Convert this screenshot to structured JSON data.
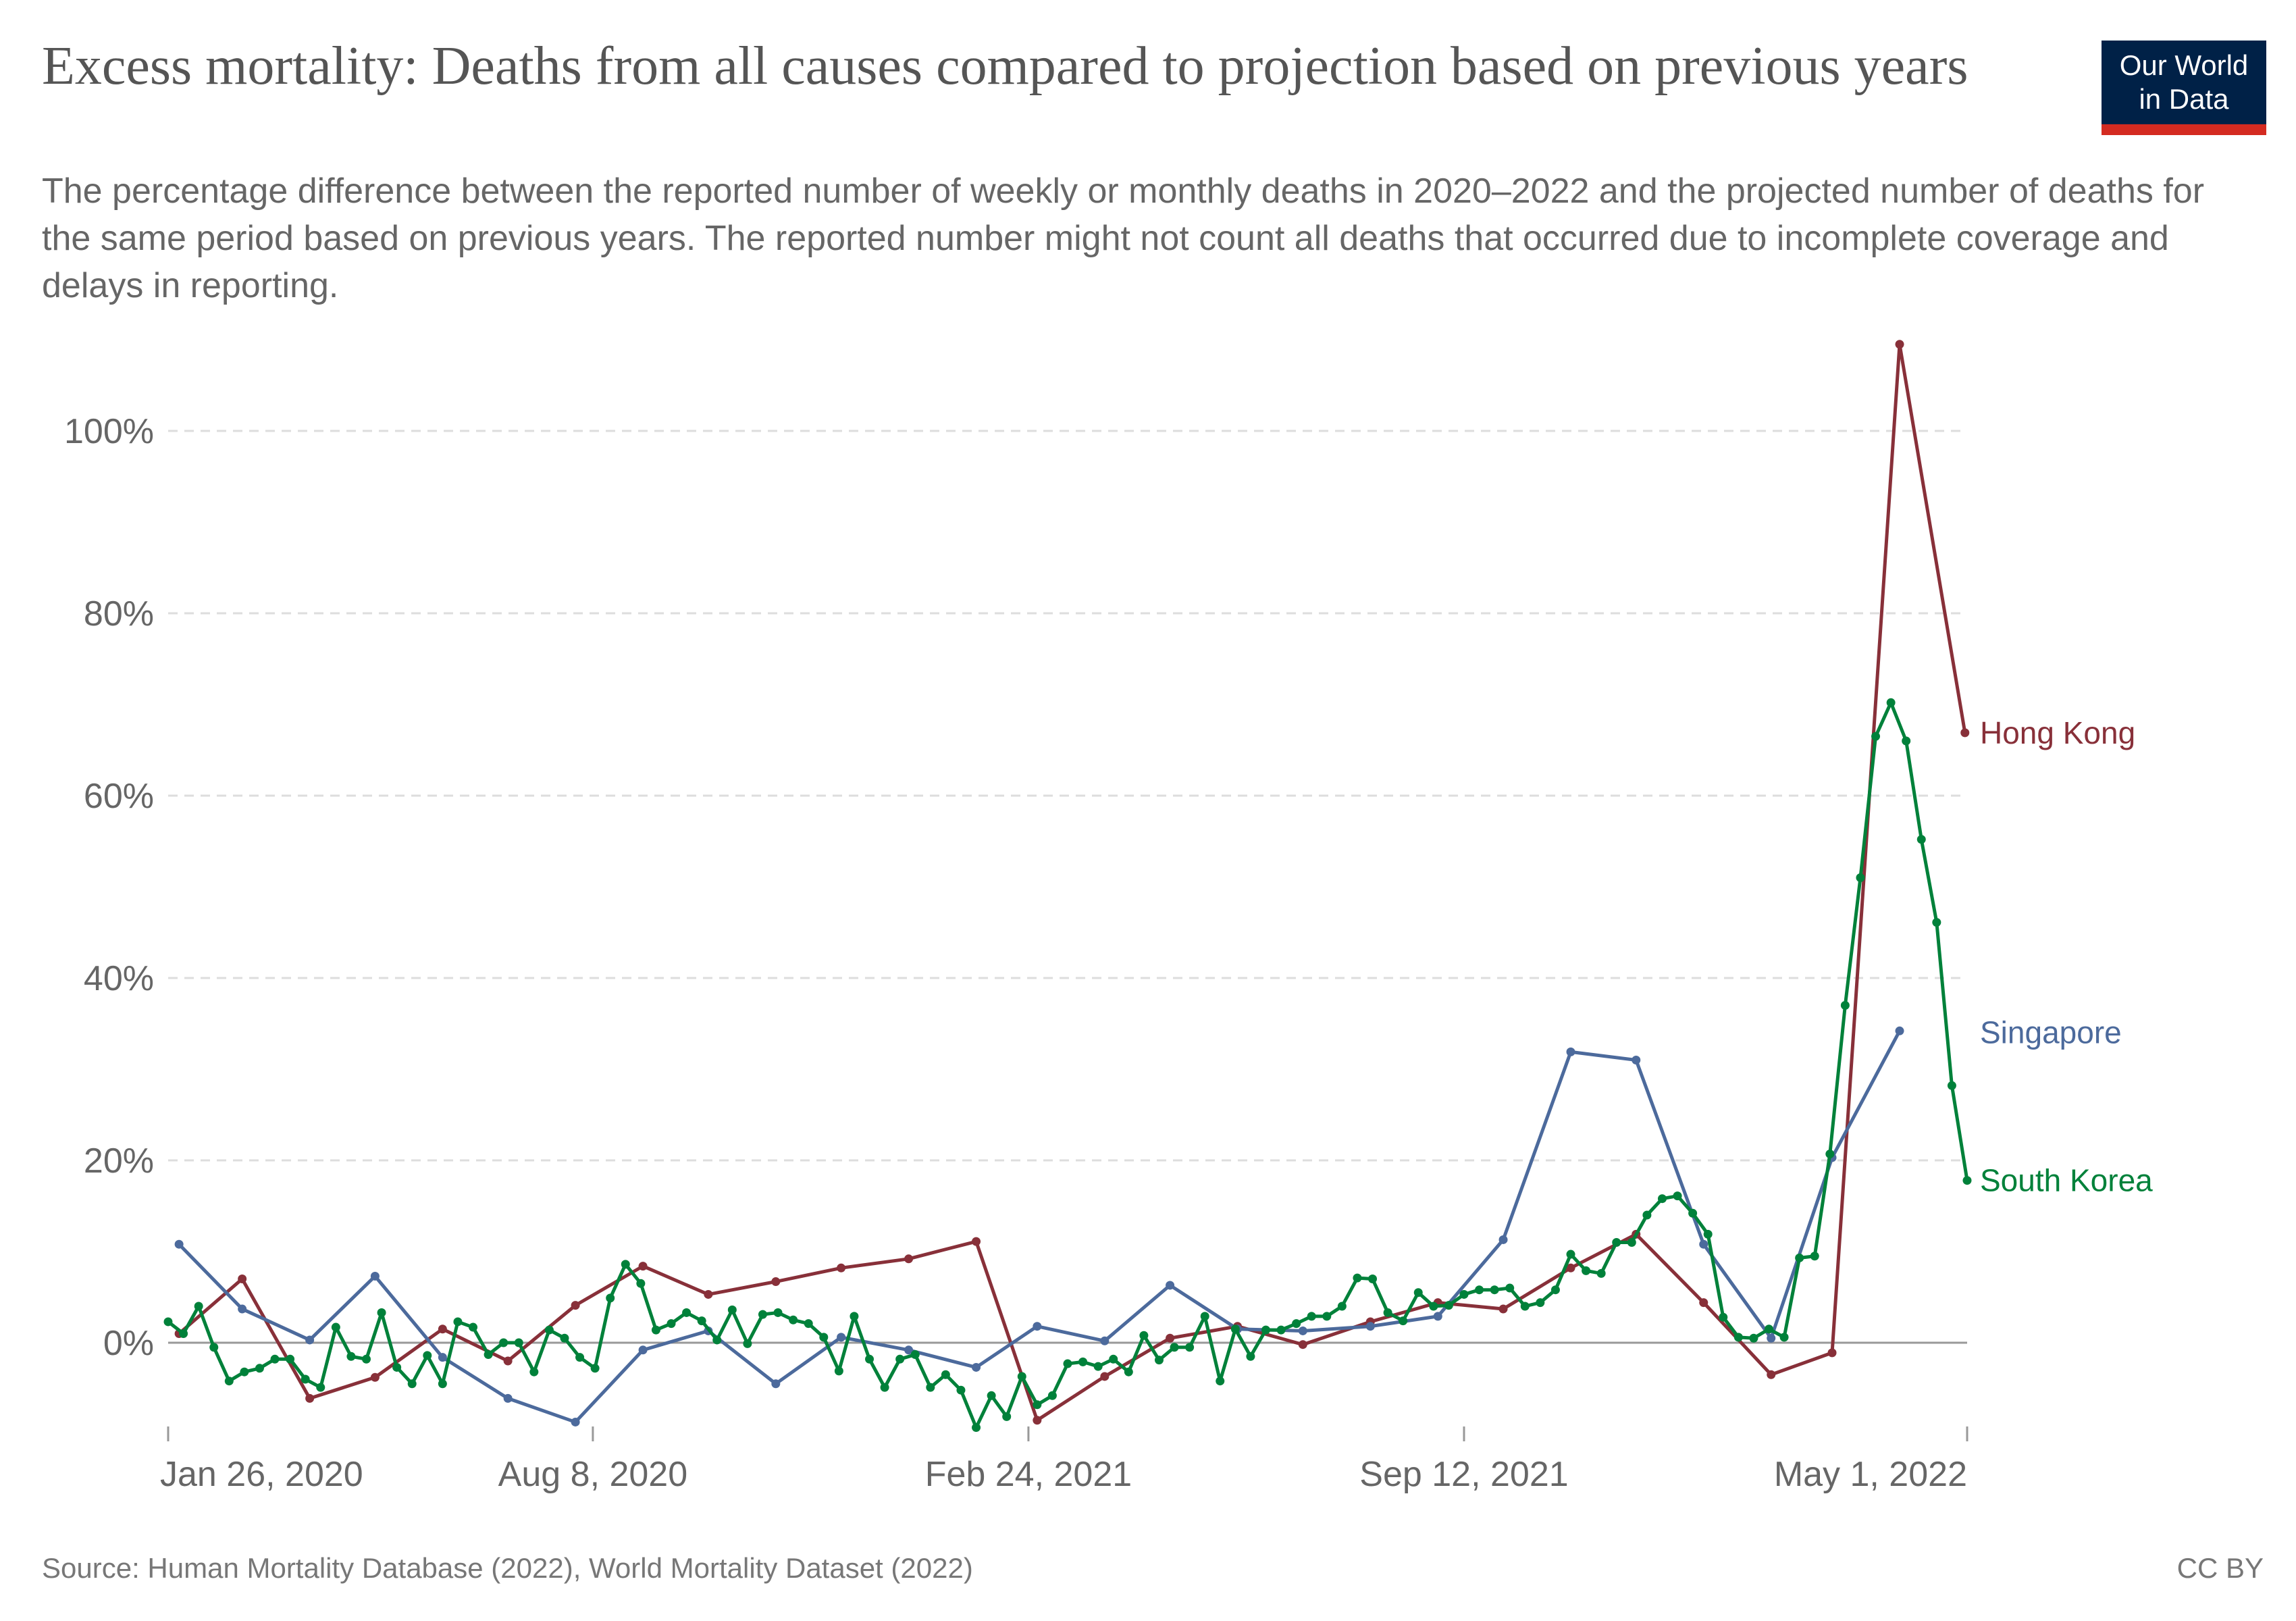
{
  "header": {
    "title": "Excess mortality: Deaths from all causes compared to projection based on previous years",
    "subtitle": "The percentage difference between the reported number of weekly or monthly deaths in 2020–2022 and the projected number of deaths for the same period based on previous years. The reported number might not count all deaths that occurred due to incomplete coverage and delays in reporting.",
    "logo_line1": "Our World",
    "logo_line2": "in Data",
    "logo_bg": "#002147",
    "logo_accent": "#d42b21"
  },
  "footer": {
    "source": "Source: Human Mortality Database (2022), World Mortality Dataset (2022)",
    "license": "CC BY"
  },
  "chart_data": {
    "type": "line",
    "title": "Excess mortality: Deaths from all causes compared to projection based on previous years",
    "xlabel": "",
    "ylabel": "",
    "y_unit": "%",
    "ylim": [
      -10,
      110
    ],
    "yticks": [
      0,
      20,
      40,
      60,
      80,
      100
    ],
    "ytick_labels": [
      "0%",
      "20%",
      "40%",
      "60%",
      "80%",
      "100%"
    ],
    "xlim": [
      "2020-01-26",
      "2022-05-01"
    ],
    "xticks": [
      "2020-01-26",
      "2020-08-08",
      "2021-02-24",
      "2021-09-12",
      "2022-05-01"
    ],
    "xtick_labels": [
      "Jan 26, 2020",
      "Aug 8, 2020",
      "Feb 24, 2021",
      "Sep 12, 2021",
      "May 1, 2022"
    ],
    "grid": "horizontal dashed",
    "legend": "inline-right",
    "series": [
      {
        "name": "Hong Kong",
        "color": "#883039",
        "frequency": "monthly",
        "x": [
          "2020-01-31",
          "2020-02-29",
          "2020-03-31",
          "2020-04-30",
          "2020-05-31",
          "2020-06-30",
          "2020-07-31",
          "2020-08-31",
          "2020-09-30",
          "2020-10-31",
          "2020-11-30",
          "2020-12-31",
          "2021-01-31",
          "2021-02-28",
          "2021-03-31",
          "2021-04-30",
          "2021-05-31",
          "2021-06-30",
          "2021-07-31",
          "2021-08-31",
          "2021-09-30",
          "2021-10-31",
          "2021-11-30",
          "2021-12-31",
          "2022-01-31",
          "2022-02-28",
          "2022-03-31",
          "2022-04-30"
        ],
        "values": [
          1.0,
          7.0,
          -6.1,
          -3.8,
          1.5,
          -2.0,
          4.1,
          8.4,
          5.3,
          6.7,
          8.2,
          9.2,
          11.1,
          -8.5,
          -3.7,
          0.5,
          1.8,
          -0.2,
          2.3,
          4.4,
          3.7,
          8.2,
          11.9,
          4.4,
          -3.5,
          -1.1,
          109.5,
          66.9
        ]
      },
      {
        "name": "Singapore",
        "color": "#4c6a9c",
        "frequency": "monthly",
        "x": [
          "2020-01-31",
          "2020-02-29",
          "2020-03-31",
          "2020-04-30",
          "2020-05-31",
          "2020-06-30",
          "2020-07-31",
          "2020-08-31",
          "2020-09-30",
          "2020-10-31",
          "2020-11-30",
          "2020-12-31",
          "2021-01-31",
          "2021-02-28",
          "2021-03-31",
          "2021-04-30",
          "2021-05-31",
          "2021-06-30",
          "2021-07-31",
          "2021-08-31",
          "2021-09-30",
          "2021-10-31",
          "2021-11-30",
          "2021-12-31",
          "2022-01-31",
          "2022-02-28",
          "2022-03-31"
        ],
        "values": [
          10.8,
          3.7,
          0.3,
          7.3,
          -1.6,
          -6.1,
          -8.7,
          -0.8,
          1.3,
          -4.5,
          0.6,
          -0.8,
          -2.7,
          1.8,
          0.2,
          6.3,
          1.5,
          1.3,
          1.8,
          2.9,
          11.3,
          31.9,
          31.0,
          10.8,
          0.5,
          20.3,
          34.2
        ]
      },
      {
        "name": "South Korea",
        "color": "#00813a",
        "frequency": "weekly",
        "start_date": "2020-01-26",
        "interval_days": 7,
        "values": [
          2.3,
          1.0,
          4.0,
          -0.5,
          -4.2,
          -3.2,
          -2.8,
          -1.8,
          -1.8,
          -4.0,
          -4.9,
          1.7,
          -1.5,
          -1.8,
          3.3,
          -2.7,
          -4.5,
          -1.4,
          -4.5,
          2.3,
          1.7,
          -1.3,
          0.0,
          0.0,
          -3.2,
          1.4,
          0.5,
          -1.6,
          -2.8,
          4.9,
          8.6,
          6.5,
          1.4,
          2.1,
          3.3,
          2.4,
          0.3,
          3.6,
          -0.1,
          3.1,
          3.3,
          2.5,
          2.1,
          0.6,
          -3.1,
          2.9,
          -1.8,
          -4.9,
          -1.8,
          -1.3,
          -4.9,
          -3.5,
          -5.2,
          -9.3,
          -5.8,
          -8.1,
          -3.7,
          -6.8,
          -5.8,
          -2.3,
          -2.1,
          -2.6,
          -1.8,
          -3.2,
          0.8,
          -1.9,
          -0.5,
          -0.5,
          2.9,
          -4.2,
          1.5,
          -1.5,
          1.4,
          1.4,
          2.1,
          2.9,
          2.9,
          4.0,
          7.1,
          7.0,
          3.3,
          2.4,
          5.5,
          4.0,
          4.1,
          5.3,
          5.8,
          5.8,
          6.0,
          4.0,
          4.4,
          5.8,
          9.7,
          7.9,
          7.6,
          11.0,
          11.0,
          14.0,
          15.8,
          16.1,
          14.2,
          11.9,
          2.8,
          0.6,
          0.5,
          1.5,
          0.6,
          9.3,
          9.5,
          20.7,
          37.0,
          51.0,
          66.5,
          70.2,
          66.0,
          55.2,
          46.1,
          28.2,
          17.8
        ]
      }
    ]
  }
}
